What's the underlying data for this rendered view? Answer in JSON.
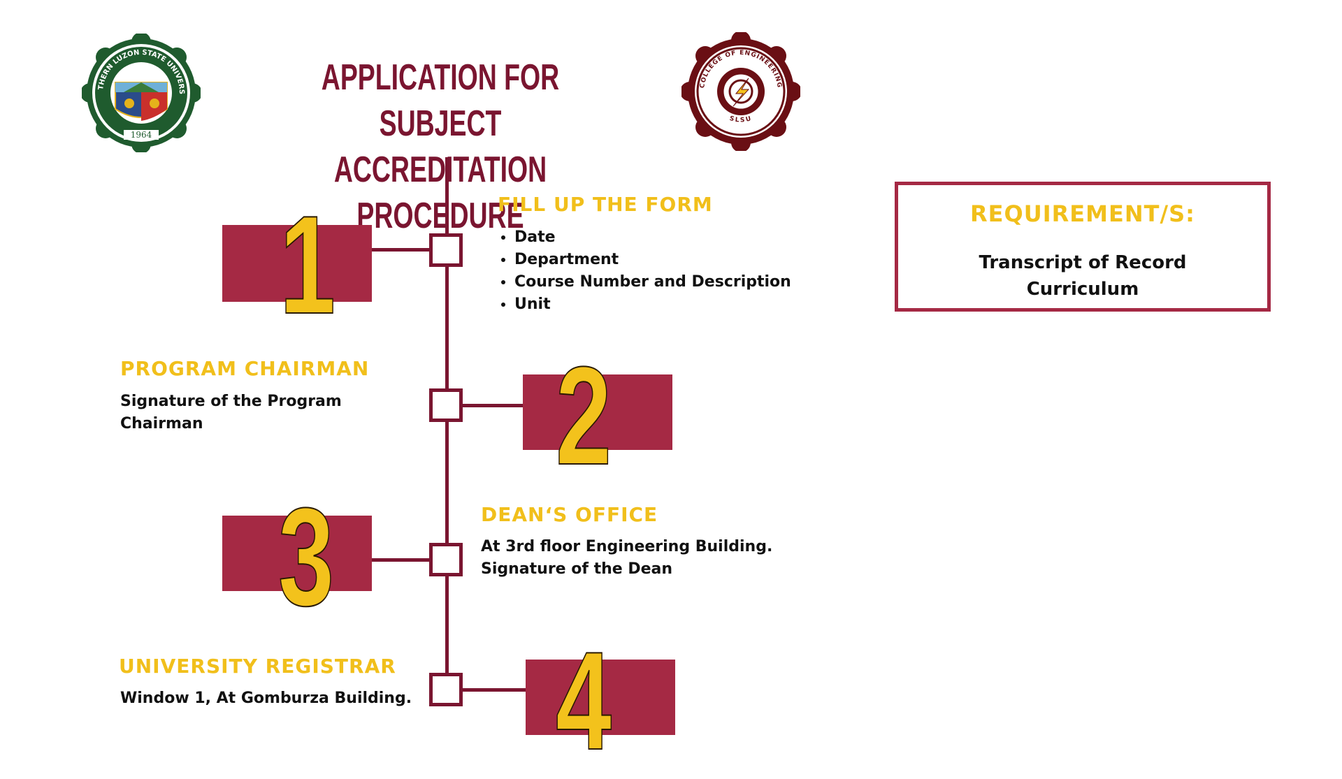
{
  "title": {
    "line1": "APPLICATION FOR SUBJECT",
    "line2": "ACCREDITATION PROCEDURE"
  },
  "logos": {
    "slsu": {
      "text_top": "SOUTHERN LUZON STATE UNIVERSITY",
      "year": "1964",
      "colors": {
        "green": "#1f5b2e",
        "red": "#c9302c",
        "blue": "#2a4c8a",
        "gold": "#e5b21b"
      }
    },
    "coe": {
      "text_top": "COLLEGE OF ENGINEERING",
      "text_bottom": "SLSU",
      "colors": {
        "maroon": "#6a0f14",
        "gold": "#f3c21c"
      }
    }
  },
  "steps": [
    {
      "number": "1",
      "heading": "FILL UP THE FORM",
      "items": [
        "Date",
        "Department",
        "Course Number and Description",
        "Unit"
      ]
    },
    {
      "number": "2",
      "heading": "PROGRAM CHAIRMAN",
      "lines": [
        "Signature of the Program",
        "Chairman"
      ]
    },
    {
      "number": "3",
      "heading": "DEAN‘S OFFICE",
      "lines": [
        "At 3rd floor Engineering Building.",
        "Signature of the Dean"
      ]
    },
    {
      "number": "4",
      "heading": "UNIVERSITY REGISTRAR",
      "lines": [
        "Window 1, At Gomburza Building."
      ]
    }
  ],
  "requirements": {
    "heading": "REQUIREMENT/S:",
    "items": [
      "Transcript of Record",
      "Curriculum"
    ]
  },
  "colors": {
    "maroon_dark": "#7a1530",
    "maroon_box": "#a52944",
    "gold": "#f1bf1b",
    "text": "#111111"
  }
}
